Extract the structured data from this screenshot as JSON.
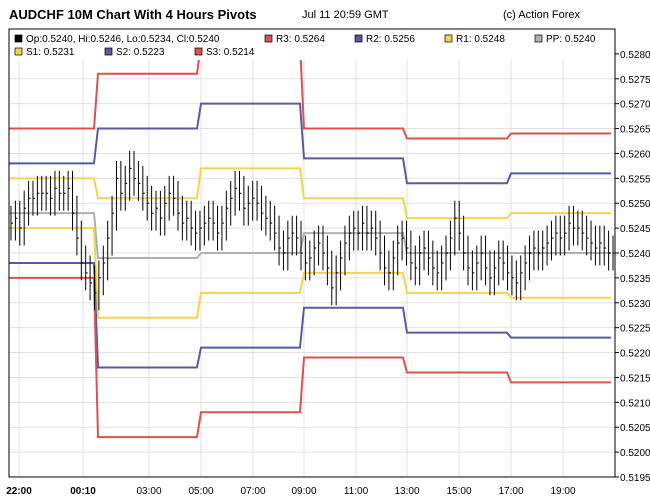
{
  "header": {
    "title": "AUDCHF 10M Chart With 4 Hours Pivots",
    "timestamp": "Jul 11 20:59 GMT",
    "brand": "(c) Action Forex"
  },
  "chart_data": {
    "type": "line",
    "ohlc_label": "Op:0.5240, Hi:0.5246, Lo:0.5234, Cl:0.5240",
    "ylim": [
      0.5195,
      0.5285
    ],
    "y_ticks": [
      "0.5280",
      "0.5275",
      "0.5270",
      "0.5265",
      "0.5260",
      "0.5255",
      "0.5250",
      "0.5245",
      "0.5240",
      "0.5235",
      "0.5230",
      "0.5225",
      "0.5220",
      "0.5215",
      "0.5210",
      "0.5205",
      "0.5200",
      "0.5195"
    ],
    "x_ticks": [
      "22:00",
      "00:10",
      "03:00",
      "05:00",
      "07:00",
      "09:00",
      "11:00",
      "13:00",
      "15:00",
      "17:00",
      "19:00"
    ],
    "grid": true,
    "pivot_segments": [
      "21:00",
      "01:00",
      "05:00",
      "09:00",
      "13:00",
      "17:00"
    ],
    "pivots": [
      {
        "name": "R3: 0.5264",
        "color": "#d9534f",
        "values": [
          0.5265,
          0.5276,
          0.5282,
          0.5265,
          0.5263,
          0.5264
        ]
      },
      {
        "name": "R2: 0.5256",
        "color": "#5a5aa0",
        "values": [
          0.5258,
          0.5265,
          0.527,
          0.5259,
          0.5254,
          0.5256
        ]
      },
      {
        "name": "R1: 0.5248",
        "color": "#f2d44e",
        "values": [
          0.5255,
          0.5251,
          0.5257,
          0.5251,
          0.5247,
          0.5248
        ]
      },
      {
        "name": "PP: 0.5240",
        "color": "#b0b0b0",
        "values": [
          0.5248,
          0.5239,
          0.524,
          0.5244,
          0.524,
          0.524
        ]
      },
      {
        "name": "S1: 0.5231",
        "color": "#f2d44e",
        "values": [
          0.5245,
          0.5227,
          0.5232,
          0.5236,
          0.5232,
          0.5231
        ]
      },
      {
        "name": "S2: 0.5223",
        "color": "#5a5aa0",
        "values": [
          0.5238,
          0.5217,
          0.5221,
          0.5229,
          0.5224,
          0.5223
        ]
      },
      {
        "name": "S3: 0.5214",
        "color": "#d9534f",
        "values": [
          0.5235,
          0.5203,
          0.5208,
          0.5219,
          0.5216,
          0.5214
        ]
      }
    ],
    "price_bar_count": 138,
    "price_closes": [
      0.5246,
      0.5247,
      0.5245,
      0.5249,
      0.5251,
      0.5251,
      0.5252,
      0.5252,
      0.5252,
      0.5251,
      0.5253,
      0.5252,
      0.5252,
      0.5253,
      0.5248,
      0.5243,
      0.5238,
      0.5236,
      0.5234,
      0.5232,
      0.5235,
      0.5238,
      0.5243,
      0.5248,
      0.5255,
      0.5252,
      0.5254,
      0.5257,
      0.5255,
      0.5254,
      0.5252,
      0.525,
      0.5248,
      0.5249,
      0.5247,
      0.525,
      0.5252,
      0.5251,
      0.5248,
      0.5246,
      0.5247,
      0.5245,
      0.5244,
      0.5245,
      0.5246,
      0.5247,
      0.5246,
      0.5244,
      0.5246,
      0.5249,
      0.5251,
      0.5253,
      0.5252,
      0.5249,
      0.525,
      0.5251,
      0.525,
      0.5248,
      0.5247,
      0.5246,
      0.5244,
      0.5241,
      0.524,
      0.5243,
      0.5244,
      0.5243,
      0.524,
      0.5238,
      0.5239,
      0.5241,
      0.5242,
      0.524,
      0.5237,
      0.5233,
      0.5236,
      0.5239,
      0.5242,
      0.5244,
      0.5245,
      0.5244,
      0.5246,
      0.5244,
      0.5245,
      0.5243,
      0.524,
      0.5237,
      0.5236,
      0.5239,
      0.5242,
      0.5243,
      0.5241,
      0.5238,
      0.5237,
      0.524,
      0.5241,
      0.5239,
      0.5237,
      0.5236,
      0.5238,
      0.524,
      0.5243,
      0.5247,
      0.5244,
      0.524,
      0.5237,
      0.5236,
      0.5238,
      0.524,
      0.5237,
      0.5235,
      0.5237,
      0.5239,
      0.5238,
      0.5236,
      0.5235,
      0.5234,
      0.5236,
      0.5238,
      0.524,
      0.5241,
      0.524,
      0.5241,
      0.5242,
      0.5243,
      0.5244,
      0.5243,
      0.5244,
      0.5246,
      0.5245,
      0.5245,
      0.5244,
      0.5243,
      0.5242,
      0.5241,
      0.5242,
      0.5241,
      0.524,
      0.524
    ]
  }
}
